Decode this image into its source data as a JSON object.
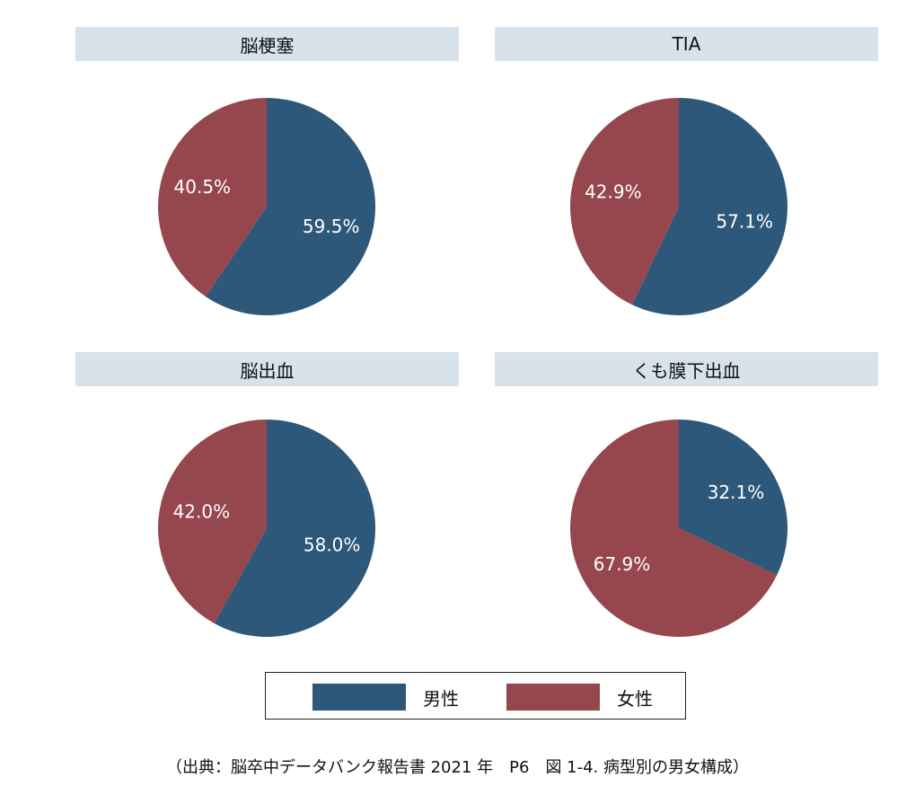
{
  "colors": {
    "male": "#2d587a",
    "female": "#96474e"
  },
  "legend": {
    "male_label": "男性",
    "female_label": "女性"
  },
  "source": "（出典：脳卒中データバンク報告書 2021 年　P6　図 1-4. 病型別の男女構成）",
  "chart_data": [
    {
      "type": "pie",
      "title": "脳梗塞",
      "slices": [
        {
          "name": "男性",
          "value": 59.5,
          "label": "59.5%"
        },
        {
          "name": "女性",
          "value": 40.5,
          "label": "40.5%"
        }
      ]
    },
    {
      "type": "pie",
      "title": "TIA",
      "slices": [
        {
          "name": "男性",
          "value": 57.1,
          "label": "57.1%"
        },
        {
          "name": "女性",
          "value": 42.9,
          "label": "42.9%"
        }
      ]
    },
    {
      "type": "pie",
      "title": "脳出血",
      "slices": [
        {
          "name": "男性",
          "value": 58.0,
          "label": "58.0%"
        },
        {
          "name": "女性",
          "value": 42.0,
          "label": "42.0%"
        }
      ]
    },
    {
      "type": "pie",
      "title": "くも膜下出血",
      "slices": [
        {
          "name": "男性",
          "value": 32.1,
          "label": "32.1%"
        },
        {
          "name": "女性",
          "value": 67.9,
          "label": "67.9%"
        }
      ]
    }
  ]
}
